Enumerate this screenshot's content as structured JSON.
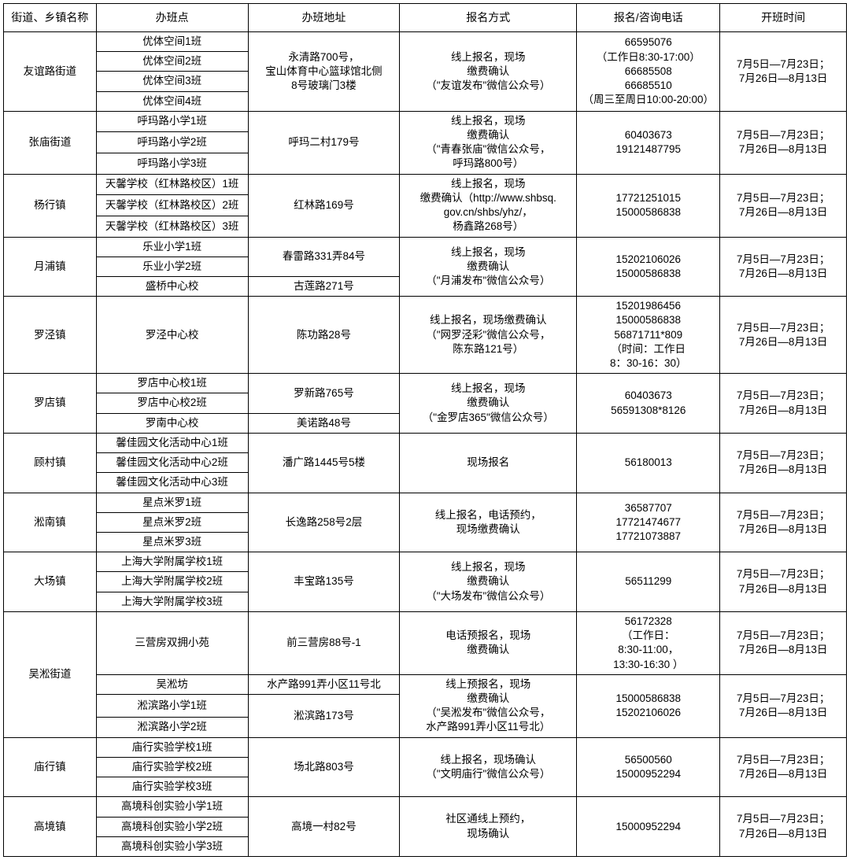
{
  "headers": [
    "街道、乡镇名称",
    "办班点",
    "办班地址",
    "报名方式",
    "报名/咨询电话",
    "开班时间"
  ],
  "rows": {
    "r1": {
      "district": "友谊路街道",
      "class": "优体空间1班",
      "addr": "永清路700号，\n宝山体育中心篮球馆北侧\n8号玻璃门3楼",
      "method": "线上报名，现场\n缴费确认\n（\"友谊发布\"微信公众号）",
      "phone": "66595076\n（工作日8:30-17:00）\n66685508\n66685510\n（周三至周日10:00-20:00）",
      "time": "7月5日—7月23日；\n7月26日—8月13日"
    },
    "r2": {
      "class": "优体空间2班"
    },
    "r3": {
      "class": "优体空间3班"
    },
    "r4": {
      "class": "优体空间4班"
    },
    "r5": {
      "district": "张庙街道",
      "class": "呼玛路小学1班",
      "addr": "呼玛二村179号",
      "method": "线上报名，现场\n缴费确认\n（\"青春张庙\"微信公众号，\n呼玛路800号）",
      "phone": "60403673\n19121487795",
      "time": "7月5日—7月23日；\n7月26日—8月13日"
    },
    "r6": {
      "class": "呼玛路小学2班"
    },
    "r7": {
      "class": "呼玛路小学3班"
    },
    "r8": {
      "district": "杨行镇",
      "class": "天馨学校（红林路校区）1班",
      "addr": "红林路169号",
      "method": "线上报名，现场\n缴费确认（http://www.shbsq.\ngov.cn/shbs/yhz/，\n杨鑫路268号）",
      "phone": "17721251015\n15000586838",
      "time": "7月5日—7月23日；\n7月26日—8月13日"
    },
    "r9": {
      "class": "天馨学校（红林路校区）2班"
    },
    "r10": {
      "class": "天馨学校（红林路校区）3班"
    },
    "r11": {
      "district": "月浦镇",
      "class": "乐业小学1班",
      "addr": "春雷路331弄84号",
      "method": "线上报名，现场\n缴费确认\n（\"月浦发布\"微信公众号）",
      "phone": "15202106026\n15000586838",
      "time": "7月5日—7月23日；\n7月26日—8月13日"
    },
    "r12": {
      "class": "乐业小学2班"
    },
    "r13": {
      "class": "盛桥中心校",
      "addr": "古莲路271号"
    },
    "r14": {
      "district": "罗泾镇",
      "class": "罗泾中心校",
      "addr": "陈功路28号",
      "method": "线上报名，现场缴费确认\n（\"网罗泾彩\"微信公众号，\n陈东路121号）",
      "phone": "15201986456\n15000586838\n56871711*809\n（时间：工作日\n8：30-16：30）",
      "time": "7月5日—7月23日；\n7月26日—8月13日"
    },
    "r15": {
      "district": "罗店镇",
      "class": "罗店中心校1班",
      "addr": "罗新路765号",
      "method": "线上报名，现场\n缴费确认\n（\"金罗店365\"微信公众号）",
      "phone": "60403673\n56591308*8126",
      "time": "7月5日—7月23日；\n7月26日—8月13日"
    },
    "r16": {
      "class": "罗店中心校2班"
    },
    "r17": {
      "class": "罗南中心校",
      "addr": "美诺路48号"
    },
    "r18": {
      "district": "顾村镇",
      "class": "馨佳园文化活动中心1班",
      "addr": "潘广路1445号5楼",
      "method": "现场报名",
      "phone": "56180013",
      "time": "7月5日—7月23日；\n7月26日—8月13日"
    },
    "r19": {
      "class": "馨佳园文化活动中心2班"
    },
    "r20": {
      "class": "馨佳园文化活动中心3班"
    },
    "r21": {
      "district": "淞南镇",
      "class": "星点米罗1班",
      "addr": "长逸路258号2层",
      "method": "线上报名，电话预约，\n现场缴费确认",
      "phone": "36587707\n17721474677\n17721073887",
      "time": "7月5日—7月23日；\n7月26日—8月13日"
    },
    "r22": {
      "class": "星点米罗2班"
    },
    "r23": {
      "class": "星点米罗3班"
    },
    "r24": {
      "district": "大场镇",
      "class": "上海大学附属学校1班",
      "addr": "丰宝路135号",
      "method": "线上报名，现场\n缴费确认\n（\"大场发布\"微信公众号）",
      "phone": "56511299",
      "time": "7月5日—7月23日；\n7月26日—8月13日"
    },
    "r25": {
      "class": "上海大学附属学校2班"
    },
    "r26": {
      "class": "上海大学附属学校3班"
    },
    "r27": {
      "district": "吴淞街道",
      "class": "三营房双拥小苑",
      "addr": "前三营房88号-1",
      "method": "电话预报名，现场\n缴费确认",
      "phone": "56172328\n（工作日：\n8:30-11:00，\n13:30-16:30 ）",
      "time": "7月5日—7月23日；\n7月26日—8月13日"
    },
    "r28": {
      "class": "吴淞坊",
      "addr": "水产路991弄小区11号北",
      "method": "线上预报名，现场\n缴费确认\n（\"吴淞发布\"微信公众号，\n水产路991弄小区11号北）",
      "phone": "15000586838\n15202106026",
      "time": "7月5日—7月23日；\n7月26日—8月13日"
    },
    "r29": {
      "class": "淞滨路小学1班",
      "addr": "淞滨路173号"
    },
    "r30": {
      "class": "淞滨路小学2班"
    },
    "r31": {
      "district": "庙行镇",
      "class": "庙行实验学校1班",
      "addr": "场北路803号",
      "method": "线上报名，现场确认\n（\"文明庙行\"微信公众号）",
      "phone": "56500560\n15000952294",
      "time": "7月5日—7月23日；\n7月26日—8月13日"
    },
    "r32": {
      "class": "庙行实验学校2班"
    },
    "r33": {
      "class": "庙行实验学校3班"
    },
    "r34": {
      "district": "高境镇",
      "class": "高境科创实验小学1班",
      "addr": "高境一村82号",
      "method": "社区通线上预约，\n现场确认",
      "phone": "15000952294",
      "time": "7月5日—7月23日；\n7月26日—8月13日"
    },
    "r35": {
      "class": "高境科创实验小学2班"
    },
    "r36": {
      "class": "高境科创实验小学3班"
    }
  }
}
